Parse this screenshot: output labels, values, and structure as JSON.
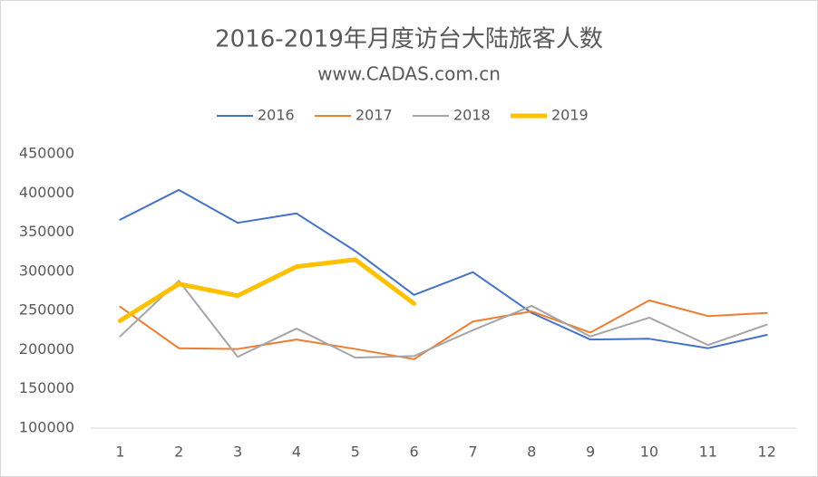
{
  "chart_data": {
    "type": "line",
    "title": "2016-2019年月度访台大陆旅客人数",
    "subtitle": "www.CADAS.com.cn",
    "categories": [
      "1",
      "2",
      "3",
      "4",
      "5",
      "6",
      "7",
      "8",
      "9",
      "10",
      "11",
      "12"
    ],
    "series": [
      {
        "name": "2016",
        "color": "#4472c4",
        "values": [
          366000,
          404000,
          362000,
          374000,
          326000,
          270000,
          299000,
          247000,
          213000,
          214000,
          202000,
          219000
        ]
      },
      {
        "name": "2017",
        "color": "#ed7d31",
        "values": [
          255000,
          202000,
          201000,
          213000,
          201000,
          188000,
          236000,
          249000,
          222000,
          263000,
          243000,
          247000
        ]
      },
      {
        "name": "2018",
        "color": "#a5a5a5",
        "values": [
          217000,
          288000,
          191000,
          227000,
          190000,
          192000,
          225000,
          256000,
          217000,
          241000,
          206000,
          232000
        ]
      },
      {
        "name": "2019",
        "color": "#ffc000",
        "values": [
          237000,
          284000,
          269000,
          306000,
          315000,
          259000,
          null,
          null,
          null,
          null,
          null,
          null
        ]
      }
    ],
    "ylim": [
      100000,
      450000
    ],
    "yticks": [
      100000,
      150000,
      200000,
      250000,
      300000,
      350000,
      400000,
      450000
    ],
    "legend": "top",
    "grid": false
  }
}
